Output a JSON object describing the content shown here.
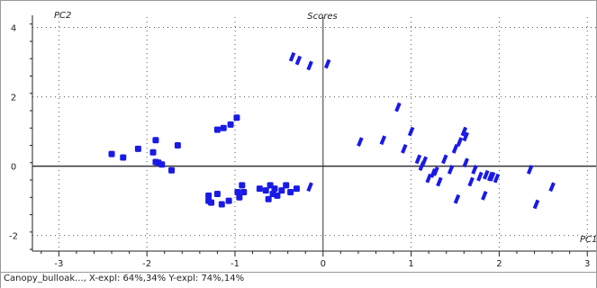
{
  "chart_data": {
    "type": "scatter",
    "title": "Scores",
    "xlabel": "PC1",
    "ylabel": "PC2",
    "xlim": [
      -3.3,
      3.1
    ],
    "ylim": [
      -2.45,
      4.3
    ],
    "xticks": [
      -3,
      -2,
      -1,
      0,
      1,
      2,
      3
    ],
    "yticks": [
      -2,
      0,
      2,
      4
    ],
    "grid": true,
    "marker_color": "#1a1ae6",
    "series": [
      {
        "marker": "square",
        "x": [
          -2.4,
          -2.27,
          -2.1,
          -1.93,
          -1.9,
          -1.87,
          -1.83,
          -1.65,
          -1.9,
          -1.72,
          -1.2,
          -1.13,
          -1.05,
          -0.98,
          -1.3,
          -1.27,
          -1.2,
          -1.07,
          -0.95,
          -0.92,
          -0.9,
          -0.72,
          -0.6,
          -0.55,
          -0.52,
          -0.47,
          -0.42,
          -0.37,
          -0.3,
          -1.3,
          -1.15,
          -0.97,
          -0.65,
          -0.62,
          -0.57
        ],
        "y": [
          0.35,
          0.25,
          0.5,
          0.4,
          0.75,
          0.1,
          0.05,
          0.6,
          0.12,
          -0.12,
          1.05,
          1.1,
          1.2,
          1.4,
          -0.85,
          -1.05,
          -0.8,
          -1.0,
          -0.9,
          -0.55,
          -0.75,
          -0.65,
          -0.55,
          -0.65,
          -0.85,
          -0.7,
          -0.55,
          -0.75,
          -0.65,
          -1.0,
          -1.1,
          -0.75,
          -0.7,
          -0.95,
          -0.8
        ]
      },
      {
        "marker": "dash",
        "x": [
          -0.35,
          -0.28,
          -0.15,
          0.05,
          0.42,
          0.68,
          0.85,
          0.92,
          1.0,
          1.08,
          1.12,
          1.2,
          1.28,
          1.32,
          1.38,
          1.45,
          1.5,
          1.55,
          1.6,
          1.62,
          1.62,
          1.68,
          1.72,
          1.78,
          1.85,
          1.9,
          1.92,
          1.97,
          2.35,
          2.42,
          2.6,
          1.83,
          1.52,
          1.25,
          1.15
        ],
        "y": [
          3.15,
          3.05,
          2.9,
          2.95,
          0.7,
          0.75,
          1.7,
          0.5,
          1.0,
          0.2,
          0.0,
          -0.35,
          -0.15,
          -0.45,
          0.2,
          -0.1,
          0.5,
          0.7,
          1.0,
          0.85,
          0.1,
          -0.45,
          -0.1,
          -0.3,
          -0.25,
          -0.3,
          -0.3,
          -0.35,
          -0.1,
          -1.1,
          -0.6,
          -0.85,
          -0.95,
          -0.2,
          0.15
        ]
      },
      {
        "marker": "dash",
        "x": [
          -0.15
        ],
        "y": [
          -0.6
        ]
      }
    ]
  },
  "status": {
    "text": "Canopy_bulloak..., X-expl: 64%,34%  Y-expl: 74%,14%"
  }
}
